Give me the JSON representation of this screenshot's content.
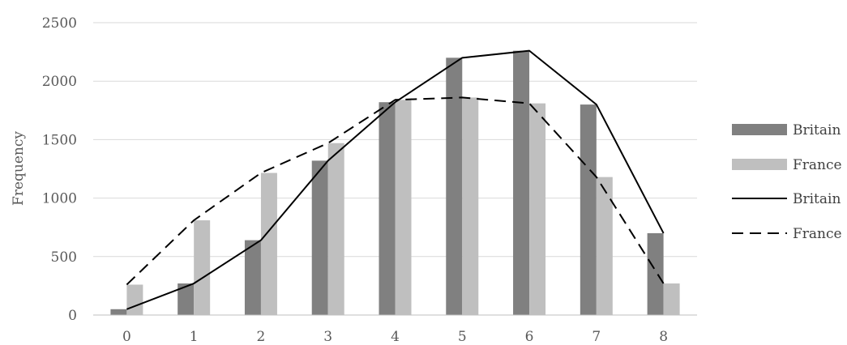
{
  "chart_data": {
    "type": "bar",
    "categories": [
      "0",
      "1",
      "2",
      "3",
      "4",
      "5",
      "6",
      "7",
      "8"
    ],
    "ylabel": "Frequency",
    "xlabel": "",
    "ylim": [
      0,
      2500
    ],
    "yticks": [
      0,
      500,
      1000,
      1500,
      2000,
      2500
    ],
    "grid": true,
    "legend_position": "right",
    "series": [
      {
        "name": "Britain",
        "kind": "bar",
        "color": "#808080",
        "values": [
          50,
          270,
          640,
          1320,
          1820,
          2200,
          2260,
          1800,
          700
        ]
      },
      {
        "name": "France",
        "kind": "bar",
        "color": "#bfbfbf",
        "values": [
          260,
          810,
          1215,
          1470,
          1840,
          1860,
          1810,
          1180,
          270
        ]
      },
      {
        "name": "Britain",
        "kind": "line",
        "style": "solid",
        "color": "#000000",
        "values": [
          50,
          270,
          640,
          1320,
          1820,
          2200,
          2260,
          1800,
          700
        ]
      },
      {
        "name": "France",
        "kind": "line",
        "style": "dashed",
        "color": "#000000",
        "values": [
          260,
          810,
          1215,
          1470,
          1840,
          1860,
          1810,
          1180,
          270
        ]
      }
    ]
  }
}
